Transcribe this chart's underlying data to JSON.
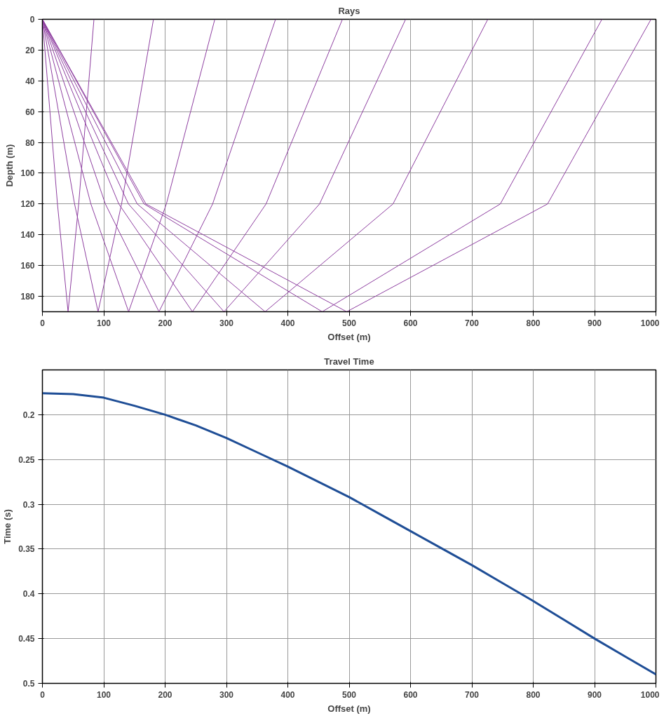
{
  "chart_data": [
    {
      "type": "line",
      "title": "Rays",
      "xlabel": "Offset (m)",
      "ylabel": "Depth (m)",
      "xlim": [
        0,
        1000
      ],
      "ylim": [
        190,
        0
      ],
      "xticks": [
        0,
        100,
        200,
        300,
        400,
        500,
        600,
        700,
        800,
        900,
        1000
      ],
      "yticks": [
        0,
        20,
        40,
        60,
        80,
        100,
        120,
        140,
        160,
        180
      ],
      "grid": true,
      "series": [
        {
          "color": "#8e3fa0",
          "x": [
            0,
            24.5,
            41.8,
            59.1,
            84
          ],
          "values": [
            0,
            120,
            190,
            120,
            0
          ]
        },
        {
          "color": "#8e3fa0",
          "x": [
            0,
            52.4,
            90.7,
            129,
            181
          ],
          "values": [
            0,
            120,
            190,
            120,
            0
          ]
        },
        {
          "color": "#8e3fa0",
          "x": [
            0,
            79,
            140.5,
            202,
            281
          ],
          "values": [
            0,
            120,
            190,
            120,
            0
          ]
        },
        {
          "color": "#8e3fa0",
          "x": [
            0,
            102.6,
            190,
            277.4,
            380
          ],
          "values": [
            0,
            120,
            190,
            120,
            0
          ]
        },
        {
          "color": "#8e3fa0",
          "x": [
            0,
            124.5,
            244.5,
            364.5,
            489
          ],
          "values": [
            0,
            120,
            190,
            120,
            0
          ]
        },
        {
          "color": "#8e3fa0",
          "x": [
            0,
            140.3,
            296,
            451.7,
            592
          ],
          "values": [
            0,
            120,
            190,
            120,
            0
          ]
        },
        {
          "color": "#8e3fa0",
          "x": [
            0,
            154.6,
            363,
            571.4,
            726
          ],
          "values": [
            0,
            120,
            190,
            120,
            0
          ]
        },
        {
          "color": "#8e3fa0",
          "x": [
            0,
            165.7,
            456,
            746.3,
            912
          ],
          "values": [
            0,
            120,
            190,
            120,
            0
          ]
        },
        {
          "color": "#8e3fa0",
          "x": [
            0,
            168.7,
            496,
            823.3,
            992
          ],
          "values": [
            0,
            120,
            190,
            120,
            0
          ]
        }
      ]
    },
    {
      "type": "line",
      "title": "Travel Time",
      "xlabel": "Offset (m)",
      "ylabel": "Time (s)",
      "xlim": [
        0,
        1000
      ],
      "ylim": [
        0.5,
        0.15
      ],
      "xticks": [
        0,
        100,
        200,
        300,
        400,
        500,
        600,
        700,
        800,
        900,
        1000
      ],
      "yticks": [
        0.2,
        0.25,
        0.3,
        0.35,
        0.4,
        0.45,
        0.5
      ],
      "grid": true,
      "series": [
        {
          "color": "#1f4e96",
          "x": [
            0,
            50,
            100,
            150,
            200,
            250,
            300,
            350,
            400,
            450,
            500,
            550,
            600,
            650,
            700,
            750,
            800,
            850,
            900,
            950,
            1000
          ],
          "values": [
            0.176,
            0.177,
            0.181,
            0.19,
            0.2,
            0.212,
            0.226,
            0.242,
            0.258,
            0.275,
            0.292,
            0.311,
            0.33,
            0.349,
            0.368,
            0.388,
            0.408,
            0.429,
            0.45,
            0.47,
            0.49
          ]
        }
      ]
    }
  ]
}
